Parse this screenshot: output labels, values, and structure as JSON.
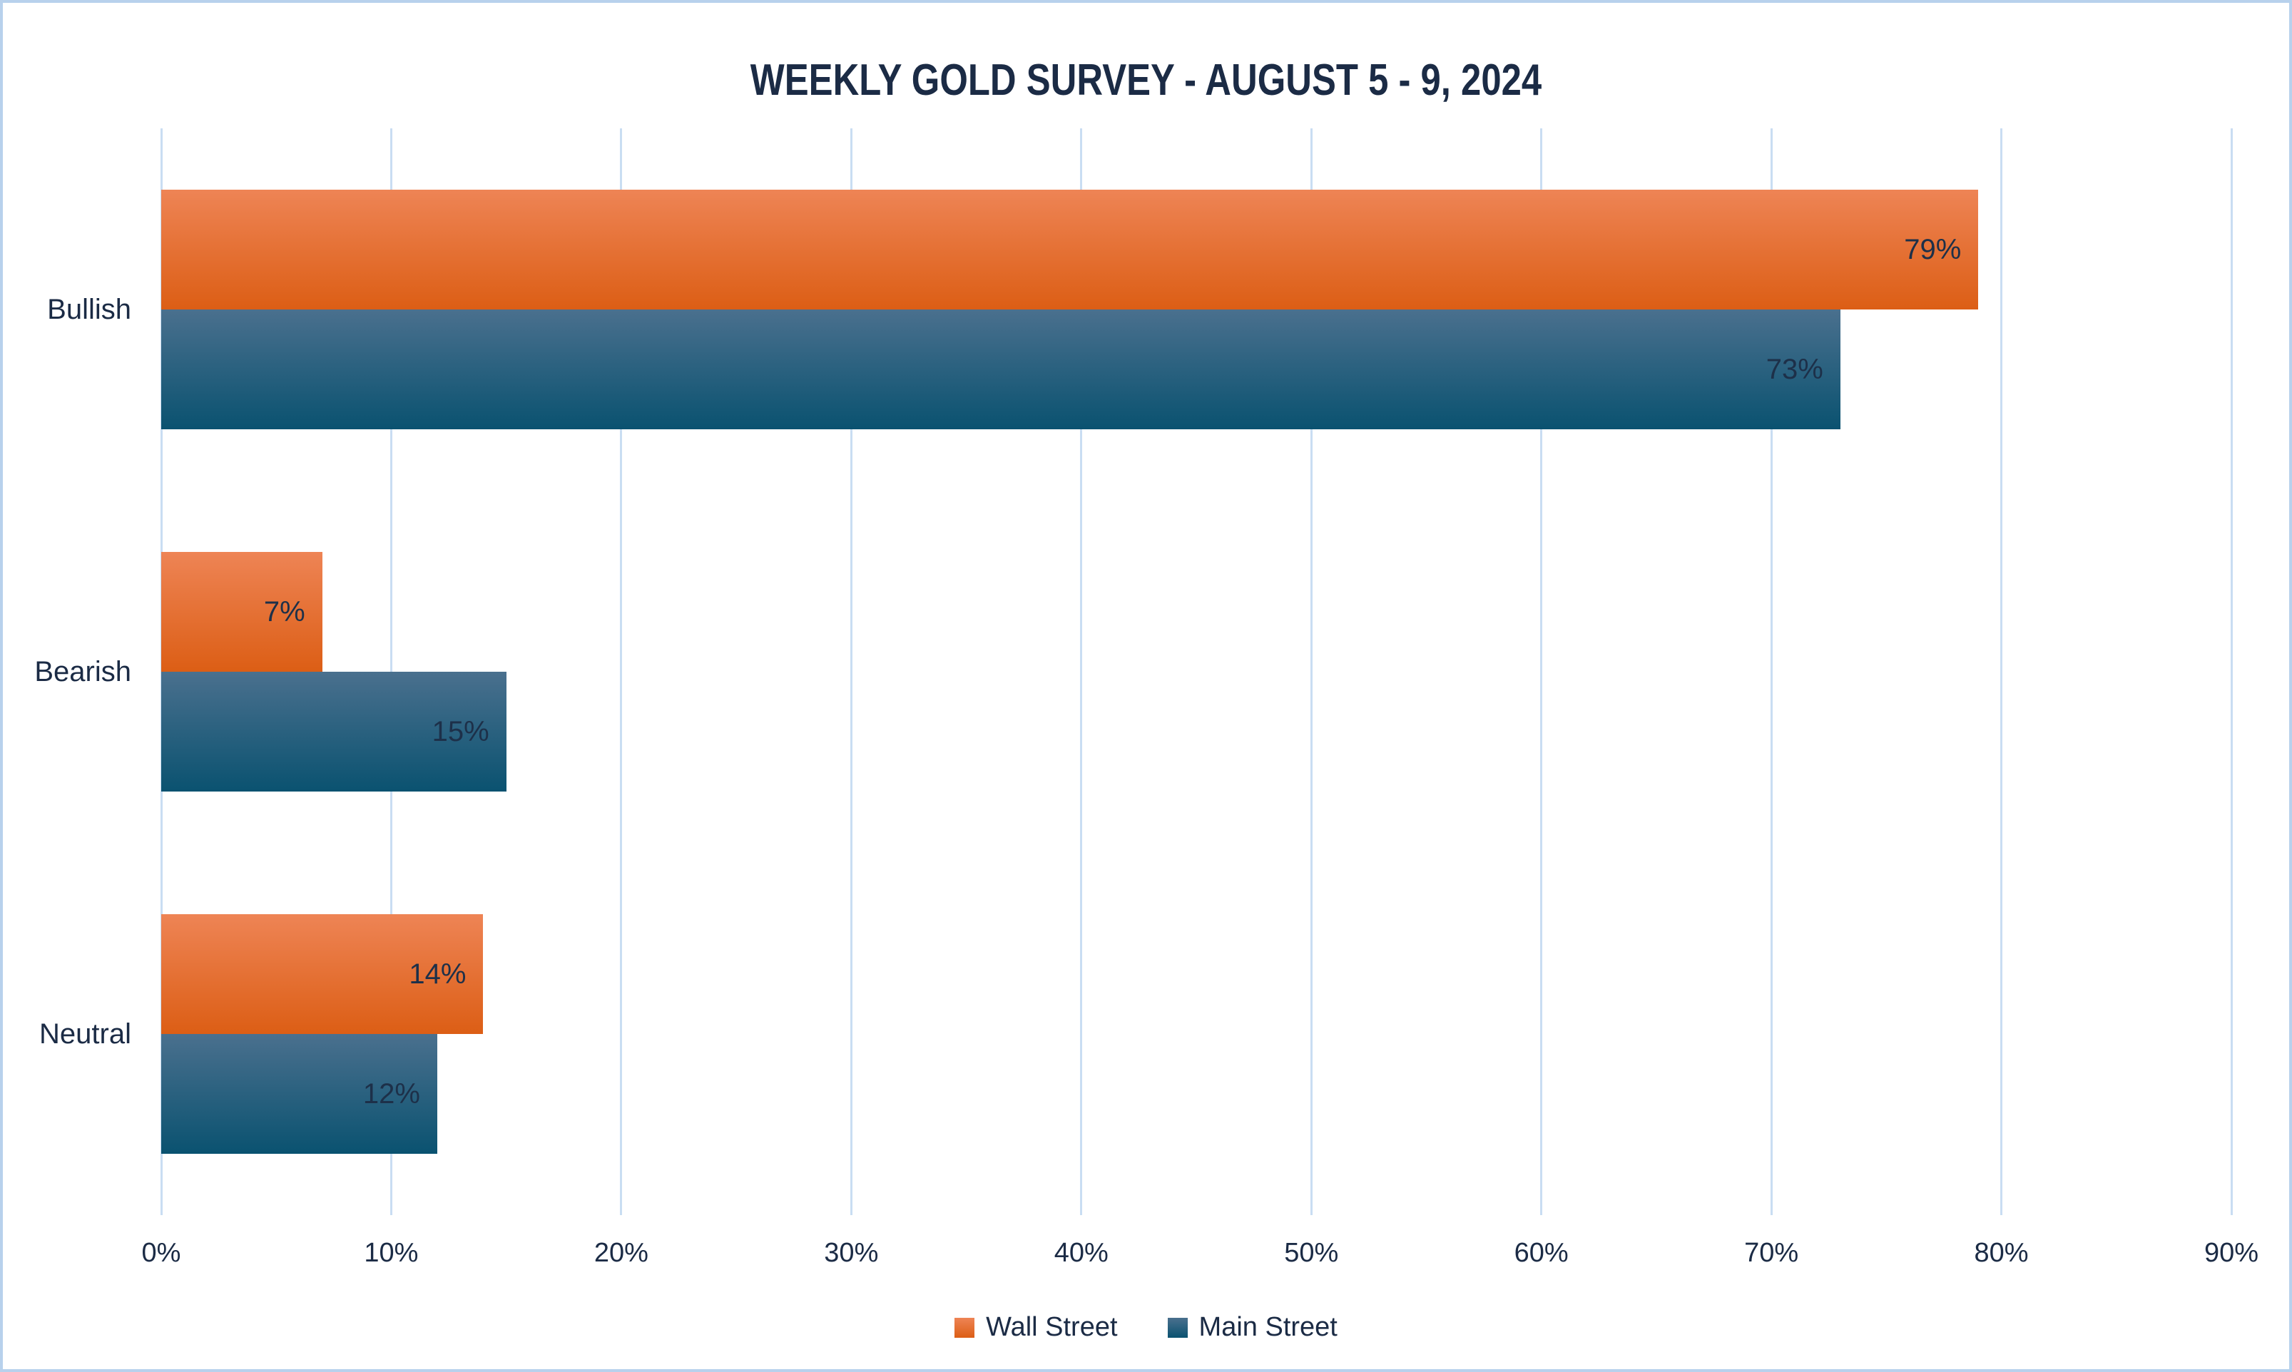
{
  "chart_data": {
    "type": "bar",
    "orientation": "horizontal",
    "title": "WEEKLY GOLD SURVEY - AUGUST 5 - 9, 2024",
    "categories": [
      "Bullish",
      "Bearish",
      "Neutral"
    ],
    "series": [
      {
        "name": "Wall Street",
        "values": [
          79,
          7,
          14
        ],
        "color_top": "#EE8455",
        "color_bottom": "#DC5E15"
      },
      {
        "name": "Main Street",
        "values": [
          73,
          15,
          12
        ],
        "color_top": "#4A708E",
        "color_bottom": "#0A5270"
      }
    ],
    "data_label_suffix": "%",
    "x_ticks": [
      "0%",
      "10%",
      "20%",
      "30%",
      "40%",
      "50%",
      "60%",
      "70%",
      "80%",
      "90%"
    ],
    "xlim": [
      0,
      90
    ],
    "grid": true,
    "legend_position": "bottom"
  },
  "colors": {
    "text": "#1B2B45",
    "data_label_text": "#1D3049",
    "gridline": "#C9DDF2",
    "page_border": "#B8D1EC",
    "background": "#FFFFFF",
    "wall_street_orange": "#DC5E15",
    "main_street_blue": "#0A5270"
  }
}
